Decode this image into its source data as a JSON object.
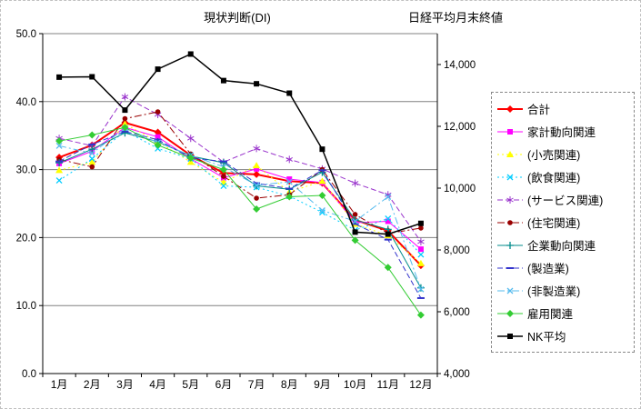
{
  "chart_data": {
    "type": "line",
    "title": "現状判断(DI)",
    "right_axis_title": "日経平均月末終値",
    "legend_position": "right",
    "grid": true,
    "categories": [
      "1月",
      "2月",
      "3月",
      "4月",
      "5月",
      "6月",
      "7月",
      "8月",
      "9月",
      "10月",
      "11月",
      "12月"
    ],
    "left_axis": {
      "min": 0,
      "max": 50,
      "labels": [
        "0.0",
        "10.0",
        "20.0",
        "30.0",
        "40.0",
        "50.0"
      ],
      "label_values": [
        0,
        10,
        20,
        30,
        40,
        50
      ]
    },
    "right_axis": {
      "min": 4000,
      "max": 15000,
      "labels": [
        "4,000",
        "6,000",
        "8,000",
        "10,000",
        "12,000",
        "14,000"
      ],
      "label_values": [
        4000,
        6000,
        8000,
        10000,
        12000,
        14000
      ]
    },
    "series": [
      {
        "name": "合計",
        "color": "#FF0000",
        "width": 2,
        "dash": "solid",
        "marker": "diamond",
        "axis": "left",
        "values": [
          31.8,
          33.6,
          36.9,
          35.5,
          32.1,
          29.5,
          29.3,
          28.3,
          28.0,
          22.6,
          21.0,
          15.9
        ]
      },
      {
        "name": "家計動向関連",
        "color": "#FF00FF",
        "width": 1,
        "dash": "solid",
        "marker": "square",
        "axis": "left",
        "values": [
          30.9,
          32.7,
          36.2,
          34.8,
          31.6,
          28.8,
          30.1,
          28.6,
          28.1,
          22.2,
          22.4,
          18.3
        ]
      },
      {
        "name": "(小売関連)",
        "color": "#FFFF00",
        "width": 1,
        "dash": "dot",
        "marker": "triangle",
        "axis": "left",
        "values": [
          29.9,
          31.1,
          36.7,
          34.1,
          31.1,
          28.1,
          30.6,
          26.7,
          28.3,
          22.0,
          20.3,
          16.2
        ]
      },
      {
        "name": "(飲食関連)",
        "color": "#00CCFF",
        "width": 1,
        "dash": "dot",
        "marker": "x",
        "axis": "left",
        "values": [
          28.4,
          31.6,
          35.7,
          33.1,
          31.6,
          27.6,
          27.4,
          26.1,
          23.7,
          21.1,
          22.8,
          17.5
        ]
      },
      {
        "name": "(サービス関連)",
        "color": "#9933CC",
        "width": 1,
        "dash": "dash",
        "marker": "asterisk",
        "axis": "left",
        "values": [
          34.6,
          33.5,
          40.7,
          38.1,
          34.6,
          31.1,
          33.1,
          31.5,
          30.1,
          28.0,
          26.3,
          19.4
        ]
      },
      {
        "name": "(住宅関連)",
        "color": "#990000",
        "width": 1,
        "dash": "dashdot",
        "marker": "circle",
        "axis": "left",
        "values": [
          31.5,
          30.4,
          37.5,
          38.5,
          32.3,
          29.0,
          25.8,
          26.3,
          30.0,
          23.4,
          20.6,
          21.4
        ]
      },
      {
        "name": "企業動向関連",
        "color": "#008B8B",
        "width": 1,
        "dash": "solid",
        "marker": "plus",
        "axis": "left",
        "values": [
          31.0,
          33.0,
          35.4,
          34.1,
          32.0,
          31.0,
          27.6,
          27.1,
          29.6,
          22.6,
          21.2,
          12.6
        ]
      },
      {
        "name": "(製造業)",
        "color": "#3333CC",
        "width": 1,
        "dash": "dash",
        "marker": "dash",
        "axis": "left",
        "values": [
          31.2,
          33.7,
          35.6,
          34.4,
          31.7,
          31.2,
          28.0,
          27.2,
          29.9,
          22.0,
          19.7,
          11.1
        ]
      },
      {
        "name": "(非製造業)",
        "color": "#55BBEE",
        "width": 1,
        "dash": "dashdot",
        "marker": "x",
        "axis": "left",
        "values": [
          33.5,
          32.4,
          36.1,
          34.0,
          32.1,
          30.4,
          27.7,
          28.2,
          24.0,
          22.4,
          26.0,
          12.4
        ]
      },
      {
        "name": "雇用関連",
        "color": "#33CC33",
        "width": 1,
        "dash": "solid",
        "marker": "diamond",
        "axis": "left",
        "values": [
          34.2,
          35.1,
          36.2,
          33.6,
          31.7,
          30.0,
          24.2,
          26.0,
          26.2,
          19.6,
          15.6,
          8.6
        ]
      },
      {
        "name": "NK平均",
        "color": "#000000",
        "width": 1.5,
        "dash": "solid",
        "marker": "square",
        "axis": "right",
        "values": [
          13592,
          13603,
          12526,
          13850,
          14339,
          13481,
          13377,
          13073,
          11260,
          8577,
          8512,
          8860
        ]
      }
    ]
  }
}
